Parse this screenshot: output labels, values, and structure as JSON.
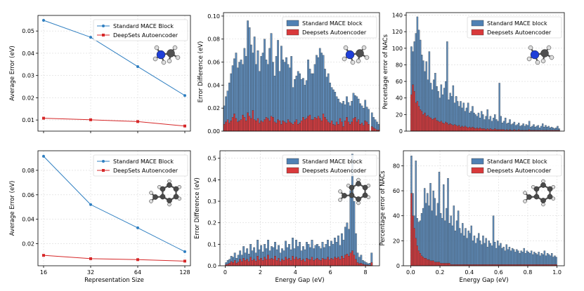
{
  "colors": {
    "mace": "#2f7fc1",
    "deepsets": "#d62728",
    "mace_bar": "#4f81b4",
    "deepsets_bar": "#d9393b"
  },
  "chart_data": [
    {
      "id": "p1",
      "type": "line",
      "x": [
        16,
        32,
        64,
        128
      ],
      "xticks": [
        "16",
        "32",
        "64",
        "128"
      ],
      "xlabel": "",
      "ylabel": "Average Error (eV)",
      "ylim": [
        0.005,
        0.057
      ],
      "yticks": [
        0.01,
        0.02,
        0.03,
        0.04,
        0.05
      ],
      "ytick_labels": [
        "0.01",
        "0.02",
        "0.03",
        "0.04",
        "0.05"
      ],
      "series": [
        {
          "name": "Standard MACE Block",
          "values": [
            0.0548,
            0.0472,
            0.034,
            0.021
          ]
        },
        {
          "name": "DeepSets Autoencoder",
          "values": [
            0.0108,
            0.0101,
            0.0093,
            0.0073
          ]
        }
      ],
      "legend": [
        "Standard MACE Block",
        "DeepSets Autoencoder"
      ],
      "legend_loc": "upper right",
      "inset": "methylamine"
    },
    {
      "id": "p2",
      "type": "bar",
      "xlim": [
        0,
        8.6
      ],
      "xticks": [],
      "xtick_labels": [],
      "xlabel": "",
      "ylabel": "Error Difference (eV)",
      "ylim": [
        0,
        0.103
      ],
      "yticks": [
        0,
        0.02,
        0.04,
        0.06,
        0.08,
        0.1
      ],
      "ytick_labels": [
        "0.00",
        "0.02",
        "0.04",
        "0.06",
        "0.08",
        "0.10"
      ],
      "bin_range": [
        0,
        8.6
      ],
      "series": [
        {
          "name": "Standard MACE block",
          "values": [
            0.022,
            0.03,
            0.035,
            0.042,
            0.05,
            0.057,
            0.063,
            0.068,
            0.055,
            0.06,
            0.062,
            0.058,
            0.072,
            0.065,
            0.096,
            0.09,
            0.075,
            0.068,
            0.082,
            0.058,
            0.07,
            0.052,
            0.065,
            0.068,
            0.08,
            0.062,
            0.058,
            0.072,
            0.085,
            0.06,
            0.048,
            0.065,
            0.079,
            0.052,
            0.074,
            0.062,
            0.06,
            0.064,
            0.058,
            0.055,
            0.065,
            0.038,
            0.045,
            0.048,
            0.052,
            0.05,
            0.045,
            0.046,
            0.04,
            0.044,
            0.062,
            0.054,
            0.05,
            0.05,
            0.058,
            0.066,
            0.064,
            0.072,
            0.068,
            0.066,
            0.054,
            0.047,
            0.05,
            0.042,
            0.038,
            0.036,
            0.034,
            0.03,
            0.028,
            0.025,
            0.024,
            0.026,
            0.023,
            0.03,
            0.025,
            0.022,
            0.026,
            0.033,
            0.031,
            0.03,
            0.028,
            0.024,
            0.022,
            0.02,
            0.027,
            0.021,
            0.019,
            0.0,
            0.016,
            0.012,
            0.01,
            0.008,
            0.006
          ]
        },
        {
          "name": "Deepsets Autoencoder",
          "values": [
            0.006,
            0.008,
            0.01,
            0.007,
            0.009,
            0.012,
            0.015,
            0.011,
            0.008,
            0.009,
            0.01,
            0.014,
            0.012,
            0.009,
            0.016,
            0.013,
            0.011,
            0.018,
            0.01,
            0.009,
            0.011,
            0.007,
            0.009,
            0.008,
            0.01,
            0.012,
            0.011,
            0.009,
            0.013,
            0.012,
            0.008,
            0.007,
            0.01,
            0.009,
            0.006,
            0.009,
            0.008,
            0.007,
            0.01,
            0.008,
            0.007,
            0.006,
            0.008,
            0.01,
            0.006,
            0.007,
            0.009,
            0.012,
            0.01,
            0.011,
            0.013,
            0.014,
            0.01,
            0.01,
            0.012,
            0.011,
            0.013,
            0.011,
            0.009,
            0.015,
            0.012,
            0.01,
            0.008,
            0.007,
            0.009,
            0.006,
            0.005,
            0.008,
            0.006,
            0.011,
            0.008,
            0.004,
            0.009,
            0.012,
            0.008,
            0.006,
            0.008,
            0.011,
            0.012,
            0.008,
            0.01,
            0.006,
            0.007,
            0.005,
            0.009,
            0.008,
            0.006,
            0.0,
            0.004,
            0.003,
            0.002,
            0.001,
            0.001
          ]
        }
      ],
      "legend": [
        "Standard MACE block",
        "Deepsets Autoencoder"
      ],
      "legend_loc": "upper right",
      "inset": "methylamine"
    },
    {
      "id": "p3",
      "type": "bar",
      "xlim": [
        -0.03,
        1.03
      ],
      "xticks": [],
      "xtick_labels": [],
      "xlabel": "",
      "ylabel": "Percentage error of NACs",
      "ylim": [
        0,
        143
      ],
      "yticks": [
        0,
        20,
        40,
        60,
        80,
        100,
        120,
        140
      ],
      "ytick_labels": [
        "0",
        "20",
        "40",
        "60",
        "80",
        "100",
        "120",
        "140"
      ],
      "bin_range": [
        0,
        1
      ],
      "series": [
        {
          "name": "Standard MACE block",
          "values": [
            102,
            96,
            108,
            118,
            138,
            122,
            110,
            92,
            85,
            72,
            84,
            62,
            96,
            58,
            50,
            62,
            70,
            54,
            48,
            40,
            56,
            44,
            52,
            60,
            108,
            38,
            46,
            42,
            55,
            34,
            42,
            36,
            30,
            36,
            28,
            34,
            24,
            28,
            34,
            22,
            24,
            30,
            22,
            20,
            18,
            22,
            16,
            24,
            20,
            14,
            18,
            26,
            14,
            18,
            12,
            16,
            20,
            14,
            12,
            58,
            18,
            10,
            12,
            16,
            9,
            10,
            14,
            8,
            9,
            11,
            7,
            8,
            10,
            6,
            7,
            9,
            6,
            8,
            7,
            12,
            5,
            6,
            8,
            5,
            6,
            7,
            4,
            6,
            9,
            5,
            7,
            5,
            6,
            4,
            5,
            4,
            3,
            4,
            6,
            3
          ]
        },
        {
          "name": "Deepsets Autoencoder",
          "values": [
            44,
            56,
            48,
            34,
            36,
            30,
            26,
            24,
            20,
            22,
            18,
            19,
            17,
            16,
            14,
            15,
            16,
            13,
            12,
            11,
            12,
            10,
            9,
            11,
            10,
            8,
            9,
            8,
            7,
            8,
            7,
            6,
            7,
            5,
            6,
            5,
            6,
            5,
            4,
            5,
            4,
            5,
            4,
            3,
            4,
            3,
            4,
            3,
            3,
            3,
            2,
            3,
            2,
            3,
            2,
            2,
            3,
            2,
            2,
            2,
            2,
            2,
            2,
            1,
            2,
            1,
            2,
            1,
            1,
            2,
            1,
            1,
            2,
            1,
            1,
            1,
            1,
            1,
            1,
            2,
            1,
            1,
            1,
            1,
            1,
            1,
            1,
            1,
            1,
            1,
            1,
            1,
            1,
            1,
            1,
            1,
            1,
            1,
            1,
            1
          ]
        }
      ],
      "legend": [
        "Standard MACE block",
        "Deepsets Autoencoder"
      ],
      "legend_loc": "upper right",
      "inset": "methylamine"
    },
    {
      "id": "p4",
      "type": "line",
      "x": [
        16,
        32,
        64,
        128
      ],
      "xticks": [
        "16",
        "32",
        "64",
        "128"
      ],
      "xlabel": "Representation Size",
      "ylabel": "Average Error (eV)",
      "ylim": [
        0.002,
        0.096
      ],
      "yticks": [
        0.02,
        0.04,
        0.06,
        0.08
      ],
      "ytick_labels": [
        "0.02",
        "0.04",
        "0.06",
        "0.08"
      ],
      "series": [
        {
          "name": "Standard MACE Block",
          "values": [
            0.0915,
            0.052,
            0.033,
            0.0135
          ]
        },
        {
          "name": "DeepSets Autoencoder",
          "values": [
            0.0105,
            0.0078,
            0.007,
            0.0058
          ]
        }
      ],
      "legend": [
        "Standard MACE Block",
        "DeepSets Autoencoder"
      ],
      "legend_loc": "upper right",
      "inset": "benzyl-radical"
    },
    {
      "id": "p5",
      "type": "bar",
      "xlim": [
        -0.3,
        8.8
      ],
      "xticks": [
        0,
        2,
        4,
        6,
        8
      ],
      "xtick_labels": [
        "0",
        "2",
        "4",
        "6",
        "8"
      ],
      "xlabel": "Energy Gap (eV)",
      "ylabel": "Error Difference (eV)",
      "ylim": [
        0,
        0.535
      ],
      "yticks": [
        0,
        0.1,
        0.2,
        0.3,
        0.4,
        0.5
      ],
      "ytick_labels": [
        "0.0",
        "0.1",
        "0.2",
        "0.3",
        "0.4",
        "0.5"
      ],
      "bin_range": [
        0,
        8.4
      ],
      "series": [
        {
          "name": "Standard MACE block",
          "values": [
            0.015,
            0.025,
            0.03,
            0.045,
            0.04,
            0.06,
            0.035,
            0.05,
            0.07,
            0.05,
            0.09,
            0.06,
            0.08,
            0.055,
            0.1,
            0.07,
            0.085,
            0.06,
            0.12,
            0.075,
            0.095,
            0.065,
            0.1,
            0.08,
            0.12,
            0.07,
            0.09,
            0.085,
            0.11,
            0.075,
            0.095,
            0.06,
            0.08,
            0.07,
            0.115,
            0.085,
            0.1,
            0.075,
            0.13,
            0.08,
            0.12,
            0.09,
            0.11,
            0.07,
            0.09,
            0.075,
            0.11,
            0.1,
            0.085,
            0.12,
            0.08,
            0.095,
            0.1,
            0.09,
            0.08,
            0.11,
            0.085,
            0.1,
            0.12,
            0.09,
            0.115,
            0.1,
            0.13,
            0.11,
            0.14,
            0.095,
            0.15,
            0.12,
            0.18,
            0.2,
            0.17,
            0.35,
            0.52,
            0.3,
            0.15,
            0.06,
            0.04,
            0.05,
            0.025,
            0.02,
            0.015,
            0.01,
            0.012,
            0.06
          ]
        },
        {
          "name": "Deepsets Autoencoder",
          "values": [
            0.005,
            0.008,
            0.012,
            0.02,
            0.015,
            0.025,
            0.012,
            0.018,
            0.03,
            0.02,
            0.035,
            0.025,
            0.03,
            0.02,
            0.04,
            0.025,
            0.03,
            0.022,
            0.045,
            0.028,
            0.035,
            0.025,
            0.04,
            0.03,
            0.05,
            0.03,
            0.035,
            0.03,
            0.045,
            0.025,
            0.035,
            0.02,
            0.03,
            0.025,
            0.04,
            0.03,
            0.035,
            0.025,
            0.045,
            0.03,
            0.04,
            0.03,
            0.035,
            0.025,
            0.03,
            0.02,
            0.035,
            0.03,
            0.028,
            0.04,
            0.025,
            0.03,
            0.035,
            0.028,
            0.025,
            0.035,
            0.03,
            0.03,
            0.04,
            0.028,
            0.035,
            0.03,
            0.04,
            0.035,
            0.04,
            0.03,
            0.045,
            0.035,
            0.05,
            0.055,
            0.045,
            0.06,
            0.07,
            0.05,
            0.03,
            0.015,
            0.01,
            0.012,
            0.008,
            0.005,
            0.004,
            0.003,
            0.003,
            0.015
          ]
        }
      ],
      "legend": [
        "Standard MACE block",
        "Deepsets Autoencoder"
      ],
      "legend_loc": "upper right",
      "inset": "benzyl-radical"
    },
    {
      "id": "p6",
      "type": "bar",
      "xlim": [
        -0.05,
        1.05
      ],
      "xticks": [
        0,
        0.2,
        0.4,
        0.6,
        0.8,
        1.0
      ],
      "xtick_labels": [
        "0.0",
        "0.2",
        "0.4",
        "0.6",
        "0.8",
        "1.0"
      ],
      "xlabel": "Energy Gap (eV)",
      "ylabel": "Percentage error of NACs",
      "ylim": [
        0,
        92
      ],
      "yticks": [
        0,
        20,
        40,
        60,
        80
      ],
      "ytick_labels": [
        "0",
        "20",
        "40",
        "60",
        "80"
      ],
      "bin_range": [
        0,
        1
      ],
      "series": [
        {
          "name": "Standard MACE block",
          "values": [
            88,
            58,
            40,
            84,
            38,
            35,
            36,
            42,
            46,
            62,
            50,
            58,
            48,
            66,
            44,
            60,
            54,
            40,
            50,
            75,
            42,
            38,
            65,
            36,
            46,
            70,
            34,
            40,
            32,
            48,
            28,
            36,
            44,
            30,
            26,
            34,
            24,
            30,
            22,
            28,
            26,
            32,
            20,
            24,
            18,
            22,
            26,
            20,
            17,
            24,
            18,
            22,
            15,
            20,
            18,
            16,
            40,
            19,
            14,
            20,
            16,
            18,
            14,
            15,
            12,
            17,
            13,
            15,
            12,
            14,
            13,
            11,
            13,
            12,
            10,
            12,
            11,
            14,
            10,
            12,
            11,
            10,
            12,
            9,
            11,
            10,
            9,
            11,
            8,
            10,
            9,
            12,
            8,
            10,
            9,
            8,
            10,
            7,
            8,
            7
          ]
        },
        {
          "name": "Deepsets Autoencoder",
          "values": [
            58,
            40,
            30,
            22,
            16,
            12,
            10,
            8,
            7,
            6,
            6,
            5,
            5,
            4,
            4,
            4,
            3,
            3,
            3,
            3,
            2,
            2,
            2,
            2,
            2,
            2,
            2,
            1,
            1,
            1,
            1,
            1,
            1,
            1,
            1,
            1,
            1,
            1,
            1,
            1,
            1,
            1,
            1,
            1,
            1,
            1,
            1,
            1,
            1,
            1,
            1,
            1,
            1,
            1,
            1,
            1,
            1,
            1,
            1,
            1,
            1,
            1,
            1,
            1,
            1,
            1,
            1,
            1,
            1,
            1,
            1,
            1,
            1,
            1,
            1,
            1,
            1,
            1,
            1,
            1,
            1,
            1,
            1,
            1,
            1,
            1,
            1,
            1,
            1,
            1,
            1,
            1,
            1,
            1,
            1,
            1,
            1,
            1,
            1,
            1
          ]
        }
      ],
      "legend": [
        "Standard MACE block",
        "Deepsets Autoencoder"
      ],
      "legend_loc": "upper right",
      "inset": "benzyl-radical"
    }
  ]
}
